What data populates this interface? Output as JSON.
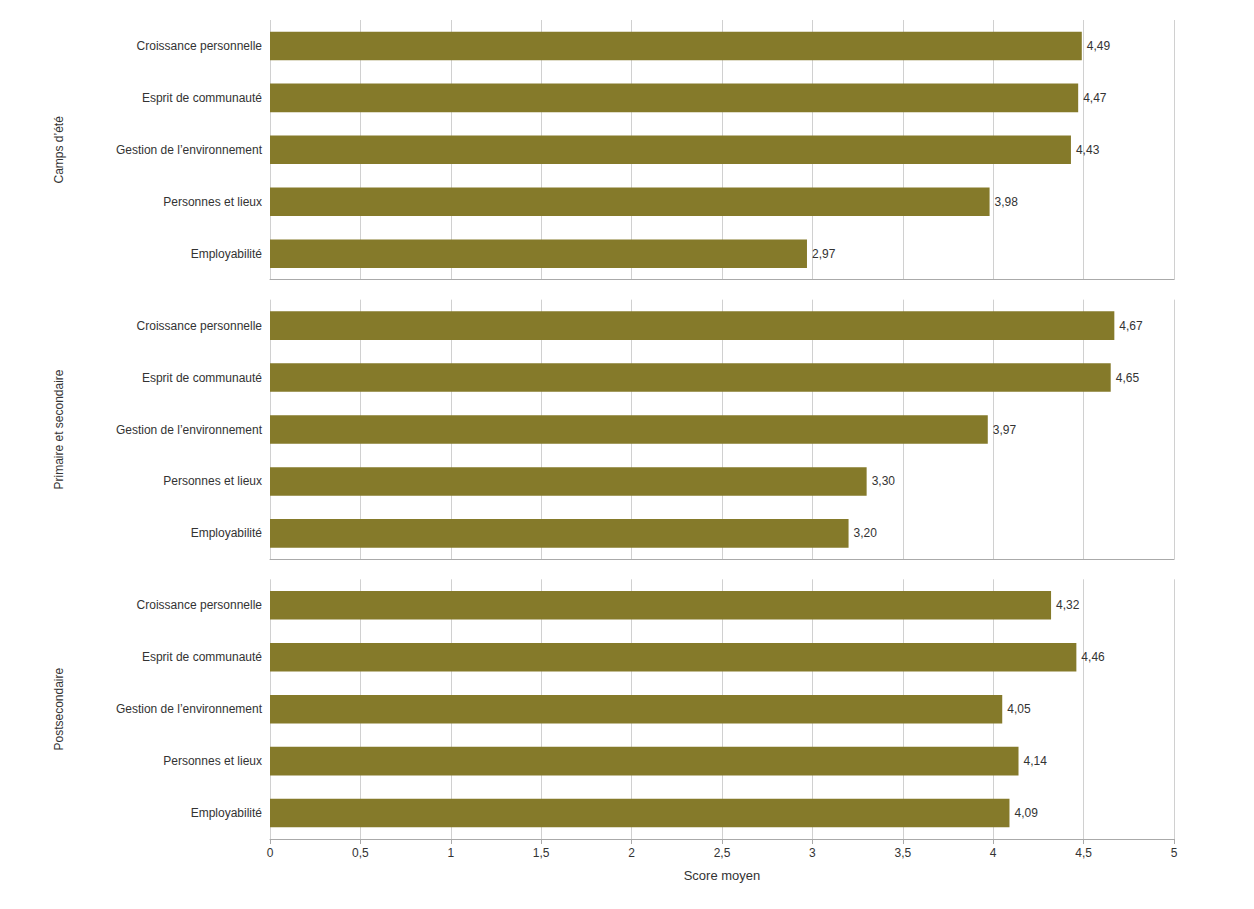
{
  "chart_data": [
    {
      "type": "bar",
      "orientation": "horizontal",
      "title": "Camps d’été",
      "categories": [
        "Croissance personnelle",
        "Esprit de communauté",
        "Gestion de l’environnement",
        "Personnes et lieux",
        "Employabilité"
      ],
      "values": [
        4.49,
        4.47,
        4.43,
        3.98,
        2.97
      ],
      "value_labels": [
        "4,49",
        "4,47",
        "4,43",
        "3,98",
        "2,97"
      ],
      "data_labels": true,
      "color": "#857a2a",
      "xlim": [
        0,
        5
      ],
      "xticks": [
        0,
        {
          "value": 0.5,
          "label": "0,5"
        },
        1,
        {
          "value": 1.5,
          "label": "1,5"
        },
        2,
        {
          "value": 2.5,
          "label": "2,5"
        },
        3,
        {
          "value": 3.5,
          "label": "3,5"
        },
        4,
        {
          "value": 4.5,
          "label": "4,5"
        },
        5
      ],
      "grid": true,
      "tick_labels": "y"
    },
    {
      "type": "bar",
      "orientation": "horizontal",
      "title": "Primaire et secondaire",
      "categories": [
        "Croissance personnelle",
        "Esprit de communauté",
        "Gestion de l’environnement",
        "Personnes et lieux",
        "Employabilité"
      ],
      "values": [
        4.67,
        4.65,
        3.97,
        3.3,
        3.2
      ],
      "value_labels": [
        "4,67",
        "4,65",
        "3,97",
        "3,30",
        "3,20"
      ],
      "data_labels": true,
      "color": "#857a2a",
      "xlim": [
        0,
        5
      ],
      "xticks": [
        0,
        {
          "value": 0.5,
          "label": "0,5"
        },
        1,
        {
          "value": 1.5,
          "label": "1,5"
        },
        2,
        {
          "value": 2.5,
          "label": "2,5"
        },
        3,
        {
          "value": 3.5,
          "label": "3,5"
        },
        4,
        {
          "value": 4.5,
          "label": "4,5"
        },
        5
      ],
      "grid": true,
      "tick_labels": "y"
    },
    {
      "type": "bar",
      "orientation": "horizontal",
      "title": "Postsecondaire",
      "categories": [
        "Croissance personnelle",
        "Esprit de communauté",
        "Gestion de l’environnement",
        "Personnes et lieux",
        "Employabilité"
      ],
      "values": [
        4.32,
        4.46,
        4.05,
        4.14,
        4.09
      ],
      "value_labels": [
        "4,32",
        "4,46",
        "4,05",
        "4,14",
        "4,09"
      ],
      "data_labels": true,
      "color": "#857a2a",
      "xlabel": "Score moyen",
      "xlim": [
        0,
        5
      ],
      "xticks": [
        0,
        {
          "value": 0.5,
          "label": "0,5"
        },
        1,
        {
          "value": 1.5,
          "label": "1,5"
        },
        2,
        {
          "value": 2.5,
          "label": "2,5"
        },
        3,
        {
          "value": 3.5,
          "label": "3,5"
        },
        4,
        {
          "value": 4.5,
          "label": "4,5"
        },
        5
      ],
      "grid": true
    }
  ]
}
